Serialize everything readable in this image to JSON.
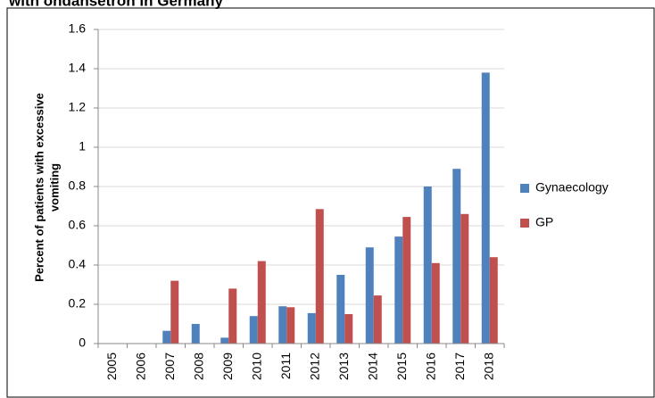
{
  "chart_data": {
    "type": "bar",
    "title": "with ondansetron in Germany",
    "y_label": [
      "Percent of patients with excessive",
      "vomiting"
    ],
    "categories": [
      "2005",
      "2006",
      "2007",
      "2008",
      "2009",
      "2010",
      "2011",
      "2012",
      "2013",
      "2014",
      "2015",
      "2016",
      "2017",
      "2018"
    ],
    "series": [
      {
        "name": "Gynaecology",
        "color": "#4f81bd",
        "values": [
          0,
          0,
          0.065,
          0.1,
          0.03,
          0.14,
          0.19,
          0.155,
          0.35,
          0.49,
          0.545,
          0.8,
          0.89,
          1.38
        ]
      },
      {
        "name": "GP",
        "color": "#c0504d",
        "values": [
          0,
          0,
          0.32,
          0,
          0.28,
          0.42,
          0.185,
          0.685,
          0.15,
          0.245,
          0.645,
          0.41,
          0.66,
          0.44
        ]
      }
    ],
    "ylim": [
      0,
      1.6
    ],
    "yticks": [
      0,
      0.2,
      0.4,
      0.6,
      0.8,
      1,
      1.2,
      1.4,
      1.6
    ],
    "grid": true,
    "legend": "right"
  }
}
